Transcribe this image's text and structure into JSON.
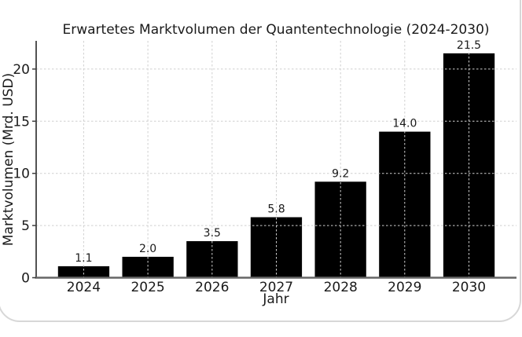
{
  "chart_data": {
    "type": "bar",
    "title": "Erwartetes Marktvolumen der Quantentechnologie (2024-2030)",
    "xlabel": "Jahr",
    "ylabel": "Marktvolumen (Mrd. USD)",
    "categories": [
      "2024",
      "2025",
      "2026",
      "2027",
      "2028",
      "2029",
      "2030"
    ],
    "values": [
      1.1,
      2.0,
      3.5,
      5.8,
      9.2,
      14.0,
      21.5
    ],
    "value_labels": [
      "1.1",
      "2.0",
      "3.5",
      "5.8",
      "9.2",
      "14.0",
      "21.5"
    ],
    "yticks": [
      0,
      5,
      10,
      15,
      20
    ],
    "ytick_labels": [
      "0",
      "5",
      "10",
      "15",
      "20"
    ],
    "ylim": [
      0,
      22.7
    ],
    "grid": true,
    "grid_style": "dashed",
    "legend_position": "none",
    "colors": {
      "bar": "#000000",
      "grid": "#cfcfcf",
      "spine_left": "#3f3f3f",
      "spine_bottom": "#666666",
      "text": "#1a1a1a",
      "card_border": "#d7d7d7",
      "background": "#ffffff"
    }
  }
}
